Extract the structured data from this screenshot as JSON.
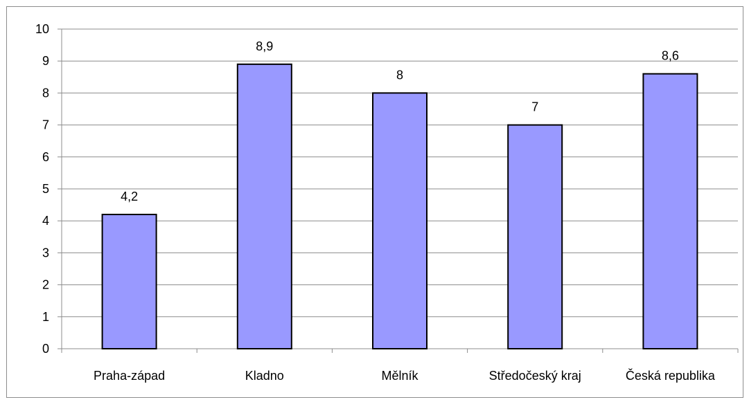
{
  "chart_data": {
    "type": "bar",
    "categories": [
      "Praha-západ",
      "Kladno",
      "Mělník",
      "Středočeský kraj",
      "Česká republika"
    ],
    "values": [
      4.2,
      8.9,
      8,
      7,
      8.6
    ],
    "data_labels": [
      "4,2",
      "8,9",
      "8",
      "7",
      "8,6"
    ],
    "ylim": [
      0,
      10
    ],
    "yticks": [
      "0",
      "1",
      "2",
      "3",
      "4",
      "5",
      "6",
      "7",
      "8",
      "9",
      "10"
    ],
    "grid": true,
    "legend": "none",
    "bar_color": "#9999ff",
    "bar_stroke": "#000000"
  }
}
